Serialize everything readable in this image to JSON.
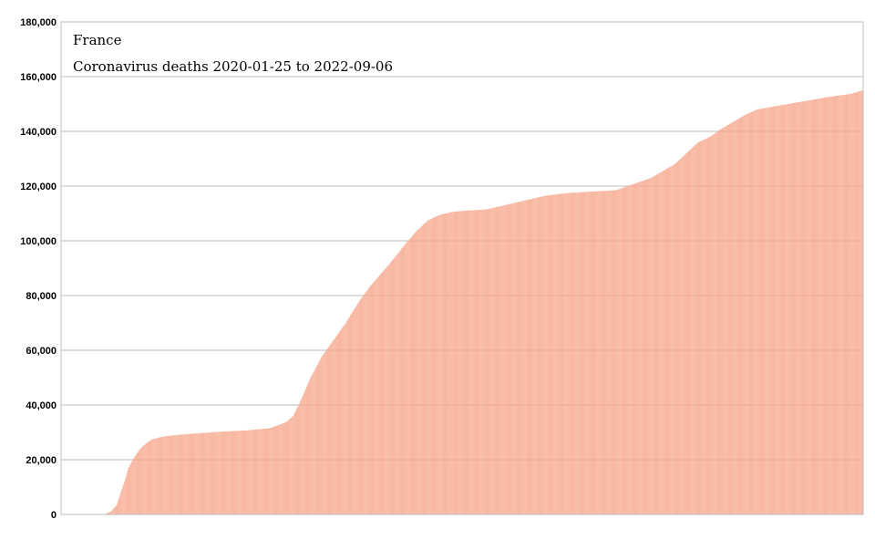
{
  "chart_data": {
    "type": "bar",
    "title": "France",
    "subtitle": "Coronavirus deaths 2020-01-25 to 2022-09-06",
    "xlabel": "",
    "ylabel": "",
    "ylim": [
      0,
      180000
    ],
    "yticks": [
      "0",
      "20,000",
      "40,000",
      "60,000",
      "80,000",
      "100,000",
      "120,000",
      "140,000",
      "160,000",
      "180,000"
    ],
    "grid": true,
    "legend": "none",
    "bar_color": "#f7a68a",
    "x_start": "2020-01-25",
    "x_end": "2022-09-06",
    "series": [
      {
        "x": [
          "2020-01-25",
          "2020-02-22",
          "2020-03-10",
          "2020-03-17",
          "2020-03-24",
          "2020-03-31",
          "2020-04-07",
          "2020-04-14",
          "2020-04-21",
          "2020-04-28",
          "2020-05-05",
          "2020-05-12",
          "2020-05-26",
          "2020-06-09",
          "2020-07-07",
          "2020-08-04",
          "2020-09-01",
          "2020-09-29",
          "2020-10-13",
          "2020-10-20",
          "2020-10-27",
          "2020-11-03",
          "2020-11-10",
          "2020-11-17",
          "2020-11-24",
          "2020-12-01",
          "2020-12-15",
          "2020-12-29",
          "2021-01-12",
          "2021-01-26",
          "2021-02-09",
          "2021-02-23",
          "2021-03-09",
          "2021-03-23",
          "2021-04-06",
          "2021-04-20",
          "2021-05-04",
          "2021-05-18",
          "2021-06-01",
          "2021-06-15",
          "2021-06-29",
          "2021-07-27",
          "2021-08-24",
          "2021-09-21",
          "2021-10-19",
          "2021-11-16",
          "2021-12-14",
          "2021-12-28",
          "2022-01-11",
          "2022-01-25",
          "2022-02-08",
          "2022-02-22",
          "2022-03-08",
          "2022-03-22",
          "2022-04-05",
          "2022-04-19",
          "2022-05-03",
          "2022-05-31",
          "2022-06-28",
          "2022-07-26",
          "2022-08-23",
          "2022-09-06"
        ],
        "values": [
          0,
          0,
          50,
          150,
          1100,
          3500,
          10000,
          17000,
          21000,
          24000,
          26000,
          27500,
          28500,
          29000,
          29700,
          30300,
          30700,
          31500,
          33000,
          34000,
          36000,
          40000,
          45000,
          50000,
          54000,
          58000,
          64000,
          70000,
          77000,
          83000,
          88000,
          93000,
          98500,
          103500,
          107500,
          109500,
          110500,
          111000,
          111200,
          111500,
          112500,
          114500,
          116500,
          117500,
          118000,
          118500,
          121500,
          123000,
          125500,
          128000,
          132000,
          136000,
          138000,
          141000,
          143500,
          146000,
          148000,
          149500,
          151000,
          152500,
          153700,
          155000
        ]
      }
    ]
  }
}
